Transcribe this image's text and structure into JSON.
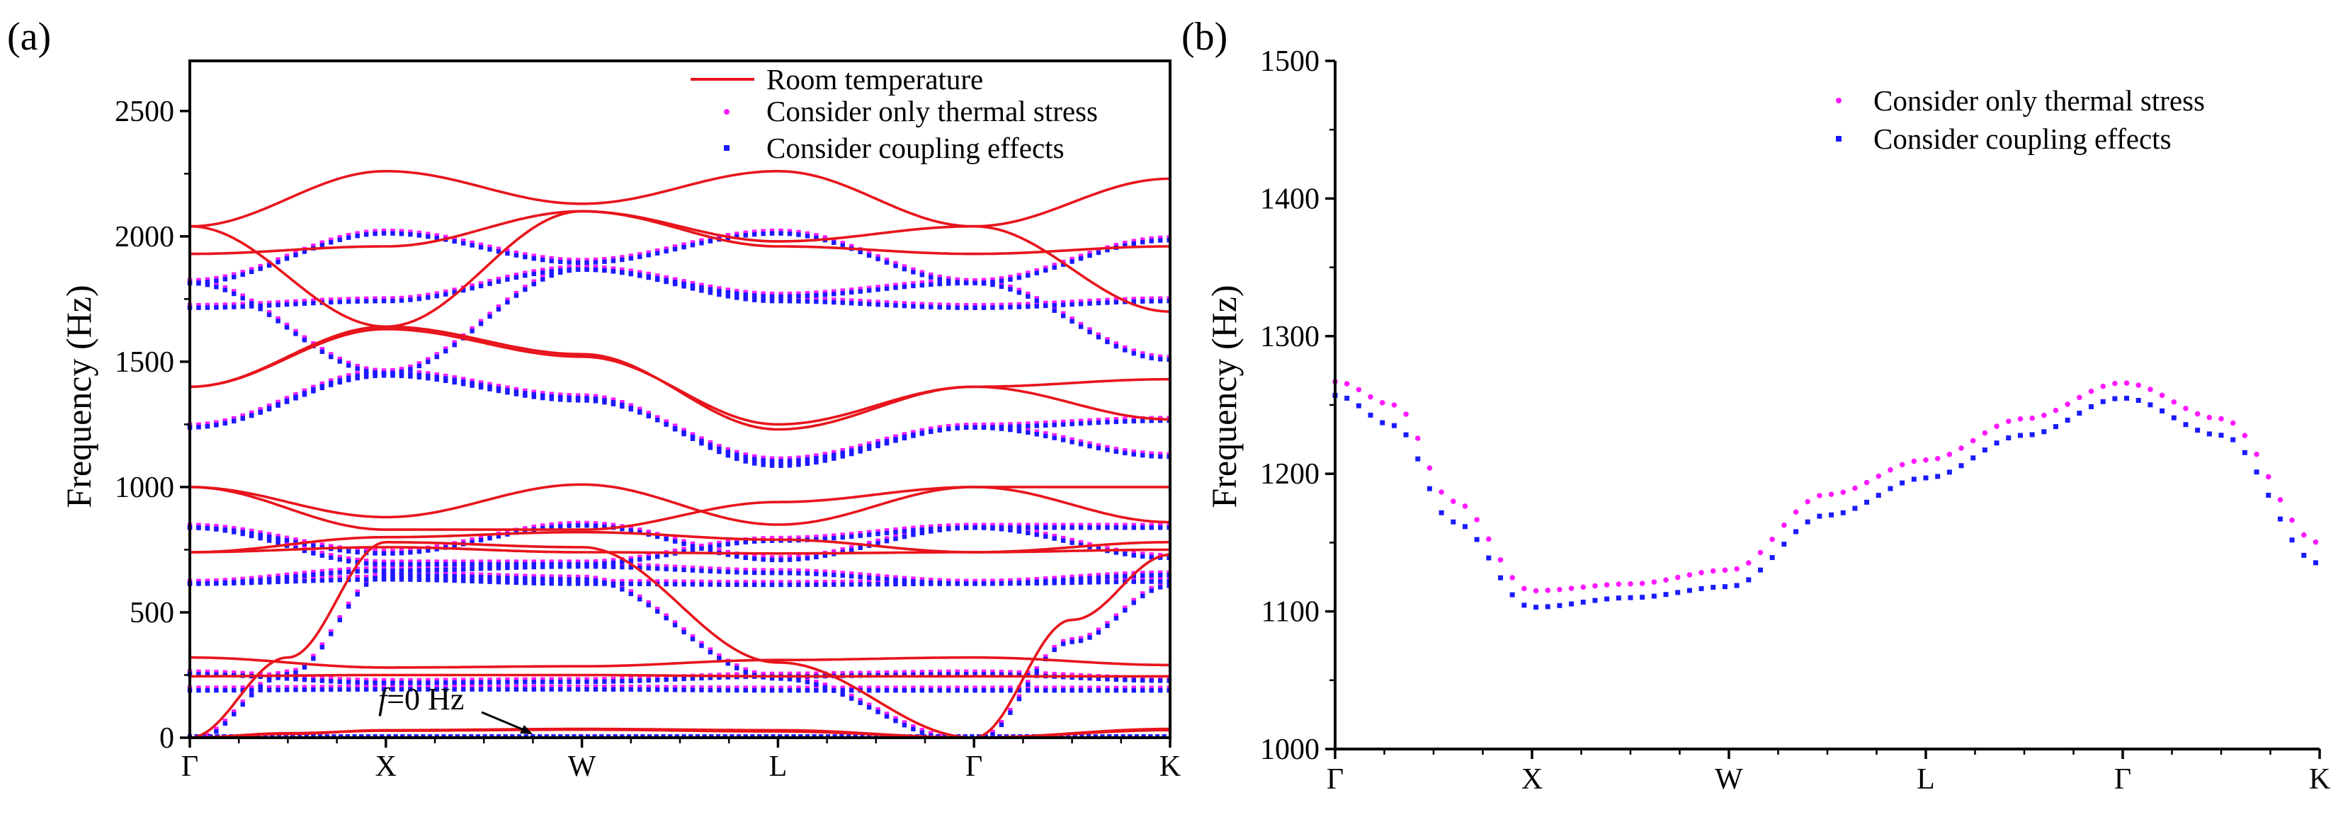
{
  "chart_data": [
    {
      "panel_label": "(a)",
      "type": "line",
      "ylabel": "Frequency (Hz)",
      "ylim": [
        0,
        2700
      ],
      "yticks": [
        "0",
        "500",
        "1000",
        "1500",
        "2000",
        "2500"
      ],
      "xticks": [
        "Γ",
        "X",
        "W",
        "L",
        "Γ",
        "K"
      ],
      "legend": [
        {
          "label": "Room temperature",
          "style": "line",
          "color": "#e8141c"
        },
        {
          "label": "Consider only thermal stress",
          "style": "dots",
          "color": "#ff1aff"
        },
        {
          "label": "Consider coupling effects",
          "style": "dots",
          "color": "#1a1aff"
        }
      ],
      "annotation": {
        "italic": "f",
        "text": "=0 Hz"
      },
      "series": [
        {
          "name": "Room temperature",
          "values_desc": "band curves",
          "bands": [
            [
              [
                0,
                0
              ],
              [
                0.5,
                15
              ],
              [
                1,
                30
              ],
              [
                2,
                35
              ],
              [
                3,
                30
              ],
              [
                4,
                0
              ],
              [
                5,
                35
              ]
            ],
            [
              [
                0,
                0
              ],
              [
                0.5,
                18
              ],
              [
                1,
                28
              ],
              [
                2,
                32
              ],
              [
                3,
                25
              ],
              [
                4,
                0
              ],
              [
                5,
                30
              ]
            ],
            [
              [
                0,
                0
              ],
              [
                0.5,
                320
              ],
              [
                1,
                780
              ],
              [
                2,
                760
              ],
              [
                3,
                300
              ],
              [
                4,
                0
              ],
              [
                4.5,
                470
              ],
              [
                5,
                730
              ]
            ],
            [
              [
                0,
                245
              ],
              [
                1,
                250
              ],
              [
                2,
                250
              ],
              [
                3,
                245
              ],
              [
                4,
                245
              ],
              [
                5,
                245
              ]
            ],
            [
              [
                0,
                320
              ],
              [
                1,
                280
              ],
              [
                2,
                285
              ],
              [
                3,
                310
              ],
              [
                4,
                320
              ],
              [
                5,
                290
              ]
            ],
            [
              [
                0,
                740
              ],
              [
                1,
                800
              ],
              [
                2,
                820
              ],
              [
                3,
                790
              ],
              [
                4,
                740
              ],
              [
                5,
                780
              ]
            ],
            [
              [
                0,
                740
              ],
              [
                1,
                760
              ],
              [
                2,
                740
              ],
              [
                3,
                735
              ],
              [
                4,
                740
              ],
              [
                5,
                750
              ]
            ],
            [
              [
                0,
                1000
              ],
              [
                1,
                880
              ],
              [
                2,
                1010
              ],
              [
                3,
                850
              ],
              [
                4,
                1000
              ],
              [
                5,
                860
              ]
            ],
            [
              [
                0,
                1000
              ],
              [
                1,
                830
              ],
              [
                2,
                830
              ],
              [
                3,
                940
              ],
              [
                4,
                1000
              ],
              [
                5,
                1000
              ]
            ],
            [
              [
                0,
                1400
              ],
              [
                1,
                1640
              ],
              [
                2,
                1530
              ],
              [
                3,
                1230
              ],
              [
                4,
                1400
              ],
              [
                5,
                1270
              ]
            ],
            [
              [
                0,
                1400
              ],
              [
                1,
                1630
              ],
              [
                2,
                1520
              ],
              [
                3,
                1250
              ],
              [
                4,
                1400
              ],
              [
                5,
                1430
              ]
            ],
            [
              [
                0,
                1930
              ],
              [
                1,
                1960
              ],
              [
                2,
                2100
              ],
              [
                3,
                1960
              ],
              [
                4,
                1930
              ],
              [
                5,
                1960
              ]
            ],
            [
              [
                0,
                2040
              ],
              [
                1,
                2260
              ],
              [
                2,
                2130
              ],
              [
                3,
                2260
              ],
              [
                4,
                2040
              ],
              [
                5,
                2230
              ]
            ],
            [
              [
                0,
                2040
              ],
              [
                1,
                1640
              ],
              [
                2,
                2100
              ],
              [
                3,
                1980
              ],
              [
                4,
                2040
              ],
              [
                5,
                1700
              ]
            ]
          ]
        },
        {
          "name": "Consider only thermal stress",
          "values_desc": "shifted bands"
        },
        {
          "name": "Consider coupling effects",
          "values_desc": "shifted bands"
        }
      ]
    },
    {
      "panel_label": "(b)",
      "type": "scatter",
      "ylabel": "Frequency (Hz)",
      "ylim": [
        1000,
        1500
      ],
      "yticks": [
        "1000",
        "1100",
        "1200",
        "1300",
        "1400",
        "1500"
      ],
      "xticks": [
        "Γ",
        "X",
        "W",
        "L",
        "Γ",
        "K"
      ],
      "legend": [
        {
          "label": "Consider only thermal stress",
          "color": "#ff1aff"
        },
        {
          "label": "Consider coupling effects",
          "color": "#1a1aff"
        }
      ],
      "series": [
        {
          "name": "Consider only thermal stress",
          "x": [
            0,
            0.3,
            0.6,
            1.0,
            1.5,
            2.0,
            2.5,
            3.0,
            3.5,
            4.0,
            4.5,
            5.0
          ],
          "values": [
            1267,
            1250,
            1180,
            1115,
            1120,
            1130,
            1185,
            1210,
            1240,
            1266,
            1240,
            1150
          ]
        },
        {
          "name": "Consider coupling effects",
          "x": [
            0,
            0.3,
            0.6,
            1.0,
            1.5,
            2.0,
            2.5,
            3.0,
            3.5,
            4.0,
            4.5,
            5.0
          ],
          "values": [
            1257,
            1235,
            1165,
            1103,
            1110,
            1118,
            1170,
            1197,
            1228,
            1255,
            1228,
            1135
          ]
        }
      ]
    }
  ]
}
